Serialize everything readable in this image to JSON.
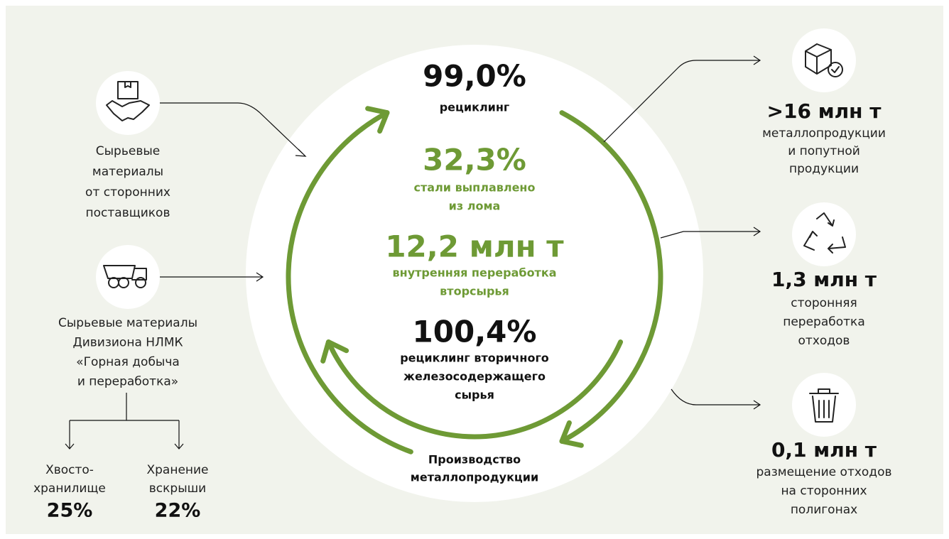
{
  "center": {
    "items": [
      {
        "value": "99,0%",
        "lines": [
          "рециклинг"
        ]
      },
      {
        "value": "32,3%",
        "lines": [
          "стали выплавлено",
          "из лома"
        ]
      },
      {
        "value": "12,2 млн т",
        "lines": [
          "внутренняя переработка",
          "вторсырья"
        ]
      },
      {
        "value": "100,4%",
        "lines": [
          "рециклинг вторичного",
          "железосодержащего",
          "сырья"
        ]
      }
    ],
    "bottom": [
      "Производство",
      "металлопродукции"
    ]
  },
  "inputs": [
    {
      "lines": [
        "Сырьевые",
        "материалы",
        "от сторонних",
        "поставщиков"
      ]
    },
    {
      "lines": [
        "Сырьевые материалы",
        "Дивизиона НЛМК",
        "«Горная добыча",
        "и переработка»"
      ]
    }
  ],
  "storage": [
    {
      "lines": [
        "Хвосто-",
        "хранилище"
      ],
      "value": "25%"
    },
    {
      "lines": [
        "Хранение",
        "вскрыши"
      ],
      "value": "22%"
    }
  ],
  "outputs": [
    {
      "value": ">16 млн т",
      "lines": [
        "металлопродукции",
        "и попутной",
        "продукции"
      ]
    },
    {
      "value": "1,3 млн т",
      "lines": [
        "сторонняя",
        "переработка",
        "отходов"
      ]
    },
    {
      "value": "0,1 млн т",
      "lines": [
        "размещение отходов",
        "на сторонних",
        "полигонах"
      ]
    }
  ]
}
